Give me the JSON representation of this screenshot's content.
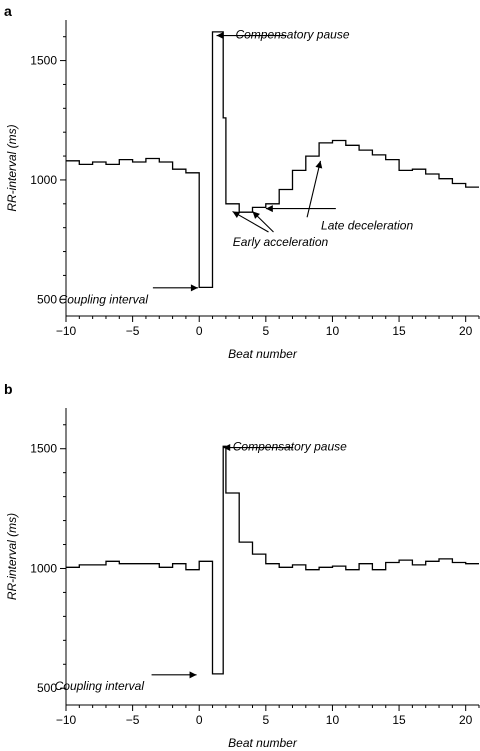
{
  "chart_data": [
    {
      "panel": "a",
      "type": "line",
      "xlabel": "Beat number",
      "ylabel": "RR-interval (ms)",
      "xlim": [
        -10,
        21
      ],
      "ylim": [
        430,
        1670
      ],
      "x_ticks": [
        -10,
        -5,
        0,
        5,
        10,
        15,
        20
      ],
      "x_tick_labels": [
        "−10",
        "−5",
        "0",
        "5",
        "10",
        "15",
        "20"
      ],
      "y_ticks": [
        500,
        1000,
        1500
      ],
      "grid": false,
      "series": [
        {
          "x": [
            -10,
            -9,
            -8,
            -7,
            -6,
            -5,
            -4,
            -3,
            -2,
            -1,
            0,
            1,
            1.8,
            2,
            3,
            4,
            5,
            6,
            7,
            8,
            9,
            10,
            11,
            12,
            13,
            14,
            15,
            16,
            17,
            18,
            19,
            20
          ],
          "values": [
            1080,
            1065,
            1075,
            1065,
            1085,
            1075,
            1090,
            1075,
            1045,
            1030,
            550,
            1620,
            1260,
            900,
            865,
            885,
            900,
            960,
            1040,
            1100,
            1155,
            1165,
            1145,
            1125,
            1105,
            1085,
            1040,
            1045,
            1025,
            1005,
            985,
            970
          ]
        }
      ],
      "annotations": [
        {
          "text": "Compensatory pause",
          "x": 7.0,
          "y": 1610,
          "arrow_to": [
            1.3,
            1605
          ]
        },
        {
          "text": "Coupling interval",
          "x": -7.2,
          "y": 500,
          "arrow_to": [
            -0.1,
            548
          ]
        },
        {
          "text": "Early acceleration",
          "x": 6.1,
          "y": 740,
          "arrow_to": [
            [
              2.5,
              868
            ],
            [
              4.0,
              868
            ]
          ]
        },
        {
          "text": "Late deceleration",
          "x": 12.6,
          "y": 810,
          "arrow_to": [
            [
              5.0,
              880
            ],
            [
              9.1,
              1080
            ]
          ]
        }
      ]
    },
    {
      "panel": "b",
      "type": "line",
      "xlabel": "Beat number",
      "ylabel": "RR-interval (ms)",
      "xlim": [
        -10,
        21
      ],
      "ylim": [
        430,
        1670
      ],
      "x_ticks": [
        -10,
        -5,
        0,
        5,
        10,
        15,
        20
      ],
      "x_tick_labels": [
        "−10",
        "−5",
        "0",
        "5",
        "10",
        "15",
        "20"
      ],
      "y_ticks": [
        500,
        1000,
        1500
      ],
      "grid": false,
      "series": [
        {
          "x": [
            -10,
            -9,
            -8,
            -7,
            -6,
            -5,
            -4,
            -3,
            -2,
            -1,
            0,
            1,
            1.8,
            2,
            3,
            4,
            5,
            6,
            7,
            8,
            9,
            10,
            11,
            12,
            13,
            14,
            15,
            16,
            17,
            18,
            19,
            20
          ],
          "values": [
            1005,
            1015,
            1015,
            1030,
            1020,
            1020,
            1020,
            1005,
            1020,
            995,
            1030,
            560,
            1510,
            1315,
            1110,
            1060,
            1020,
            1005,
            1015,
            995,
            1005,
            1010,
            995,
            1020,
            995,
            1025,
            1035,
            1015,
            1030,
            1040,
            1025,
            1020
          ]
        }
      ],
      "annotations": [
        {
          "text": "Compensatory pause",
          "x": 6.8,
          "y": 1510,
          "arrow_to": [
            1.8,
            1505
          ]
        },
        {
          "text": "Coupling interval",
          "x": -7.5,
          "y": 510,
          "arrow_to": [
            -0.2,
            556
          ]
        }
      ]
    }
  ],
  "panels": [
    {
      "letter": "a"
    },
    {
      "letter": "b"
    }
  ]
}
